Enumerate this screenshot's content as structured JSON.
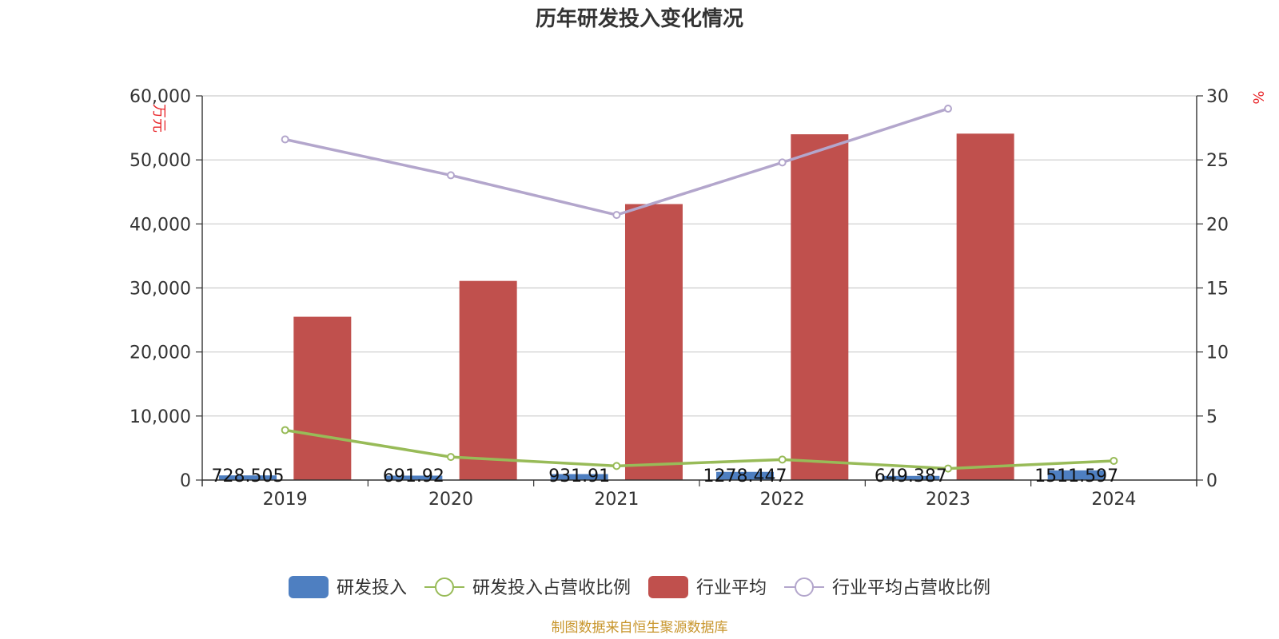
{
  "chart_data": {
    "type": "bar",
    "title": "历年研发投入变化情况",
    "categories": [
      "2019",
      "2020",
      "2021",
      "2022",
      "2023",
      "2024"
    ],
    "y_left": {
      "unit": "万元",
      "ylim": [
        0,
        60000
      ],
      "ticks": [
        0,
        10000,
        20000,
        30000,
        40000,
        50000,
        60000
      ],
      "tick_labels": [
        "0",
        "10,000",
        "20,000",
        "30,000",
        "40,000",
        "50,000",
        "60,000"
      ]
    },
    "y_right": {
      "unit": "%",
      "ylim": [
        0,
        30
      ],
      "ticks": [
        0,
        5,
        10,
        15,
        20,
        25,
        30
      ],
      "tick_labels": [
        "0",
        "5",
        "10",
        "15",
        "20",
        "25",
        "30"
      ]
    },
    "series": [
      {
        "name": "研发投入",
        "type": "bar",
        "axis": "left",
        "color": "#4e7fc1",
        "values": [
          728.505,
          691.92,
          931.91,
          1278.447,
          649.387,
          1511.597
        ],
        "labels": [
          "728.505",
          "691.92",
          "931.91",
          "1278.447",
          "649.387",
          "1511.597"
        ]
      },
      {
        "name": "研发投入占营收比例",
        "type": "line",
        "axis": "right",
        "color": "#98bb58",
        "values": [
          3.9,
          1.8,
          1.1,
          1.6,
          0.9,
          1.5
        ]
      },
      {
        "name": "行业平均",
        "type": "bar",
        "axis": "left",
        "color": "#c0504d",
        "values": [
          25500,
          31100,
          43100,
          54000,
          54100,
          null
        ]
      },
      {
        "name": "行业平均占营收比例",
        "type": "line",
        "axis": "right",
        "color": "#b3a6cc",
        "values": [
          26.6,
          23.8,
          20.7,
          24.8,
          29.0,
          null
        ]
      }
    ],
    "legend_position": "bottom",
    "grid": true
  },
  "source_text": "制图数据来自恒生聚源数据库"
}
